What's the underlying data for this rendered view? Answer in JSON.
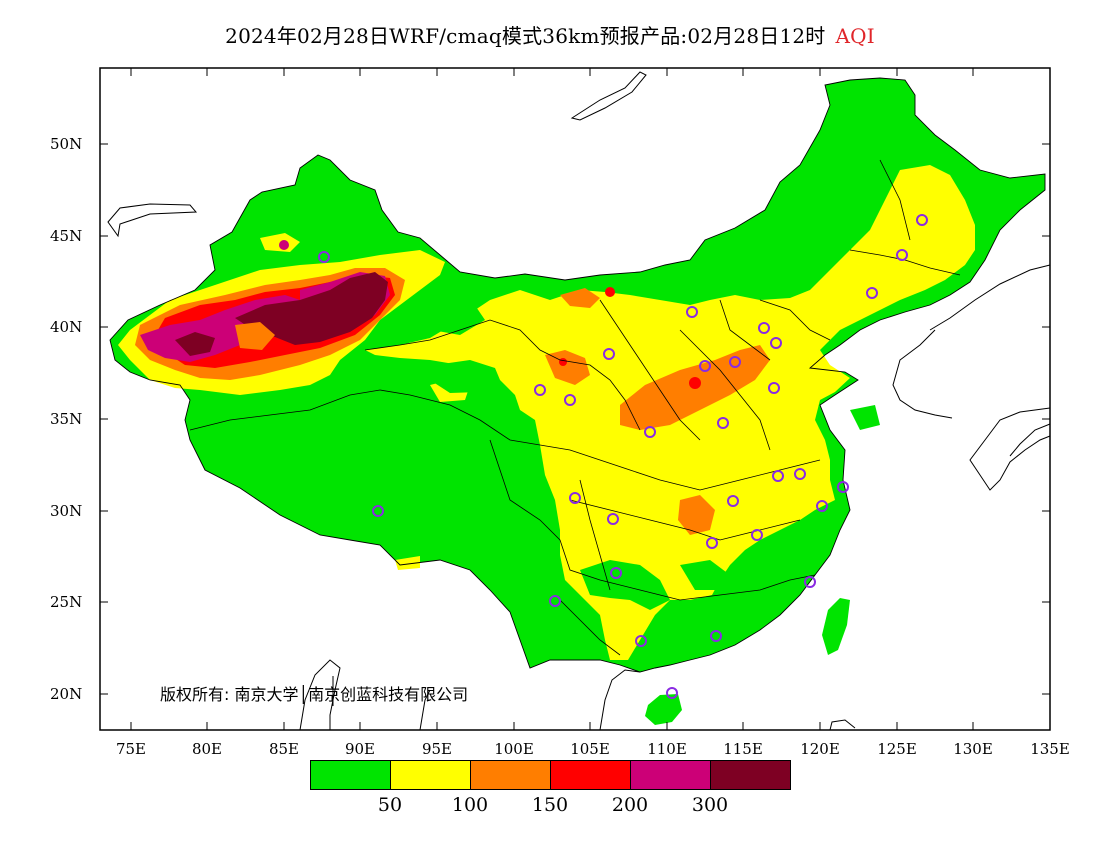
{
  "title": {
    "main": "2024年02月28日WRF/cmaq模式36km预报产品:02月28日12时",
    "product": "AQI"
  },
  "axes": {
    "lat_ticks": [
      "50N",
      "45N",
      "40N",
      "35N",
      "30N",
      "25N",
      "20N"
    ],
    "lon_ticks": [
      "75E",
      "80E",
      "85E",
      "90E",
      "95E",
      "100E",
      "105E",
      "110E",
      "115E",
      "120E",
      "125E",
      "130E",
      "135E"
    ]
  },
  "colorbar": {
    "colors": [
      "#00e400",
      "#ffff00",
      "#ff7e00",
      "#ff0000",
      "#cc0077",
      "#7e0023"
    ],
    "labels": [
      "50",
      "100",
      "150",
      "200",
      "300"
    ]
  },
  "copyright": "版权所有: 南京大学│南京创蓝科技有限公司"
}
